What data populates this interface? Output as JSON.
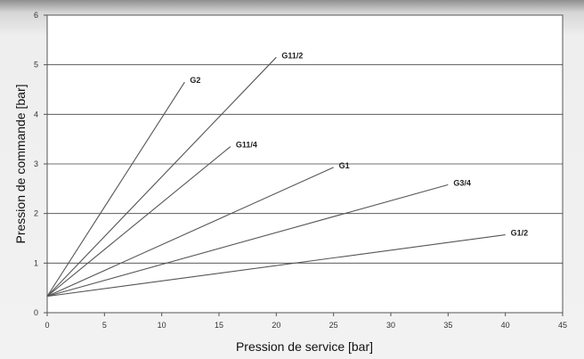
{
  "chart_data": {
    "type": "line",
    "title": "",
    "xlabel": "Pression de service [bar]",
    "ylabel": "Pression de commande [bar]",
    "xlim": [
      0,
      45
    ],
    "ylim": [
      0,
      6
    ],
    "x_ticks": [
      0,
      5,
      10,
      15,
      20,
      25,
      30,
      35,
      40,
      45
    ],
    "y_ticks": [
      0,
      1,
      2,
      3,
      4,
      5,
      6
    ],
    "grid": "horizontal",
    "legend": "labels at line ends",
    "series": [
      {
        "name": "G2",
        "points": [
          [
            0,
            0.33
          ],
          [
            12,
            4.65
          ]
        ]
      },
      {
        "name": "G11/2",
        "points": [
          [
            0,
            0.33
          ],
          [
            20,
            5.15
          ]
        ]
      },
      {
        "name": "G11/4",
        "points": [
          [
            0,
            0.33
          ],
          [
            16,
            3.35
          ]
        ]
      },
      {
        "name": "G1",
        "points": [
          [
            0,
            0.33
          ],
          [
            25,
            2.93
          ]
        ]
      },
      {
        "name": "G3/4",
        "points": [
          [
            0,
            0.33
          ],
          [
            35,
            2.58
          ]
        ]
      },
      {
        "name": "G1/2",
        "points": [
          [
            0,
            0.33
          ],
          [
            40,
            1.57
          ]
        ]
      }
    ]
  }
}
